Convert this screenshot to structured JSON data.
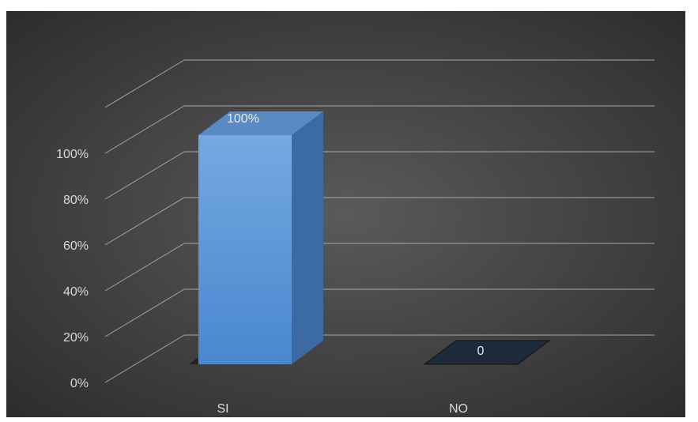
{
  "chart_data": {
    "type": "bar",
    "title": "",
    "xlabel": "",
    "ylabel": "",
    "categories": [
      "SI",
      "NO"
    ],
    "values": [
      1.0,
      0
    ],
    "data_labels": [
      "100%",
      "0"
    ],
    "y_ticks": [
      "0%",
      "20%",
      "40%",
      "60%",
      "80%",
      "100%"
    ],
    "ylim": [
      0,
      1.2
    ],
    "grid": true,
    "legend": "none",
    "colors": {
      "background_center": "#5a5a5a",
      "background_edge": "#2a2a2a",
      "gridline": "#a8a8a8",
      "bar_front_top": "#74a9e2",
      "bar_front_bottom": "#4a87cf",
      "bar_top": "#5a8ac3",
      "bar_side": "#3c6aa2",
      "bar_shadow": "#1b1b1b",
      "zero_bar_fill": "#1d2a3b",
      "text": "#d9d9d9",
      "data_label": "#e8e8e8"
    }
  }
}
